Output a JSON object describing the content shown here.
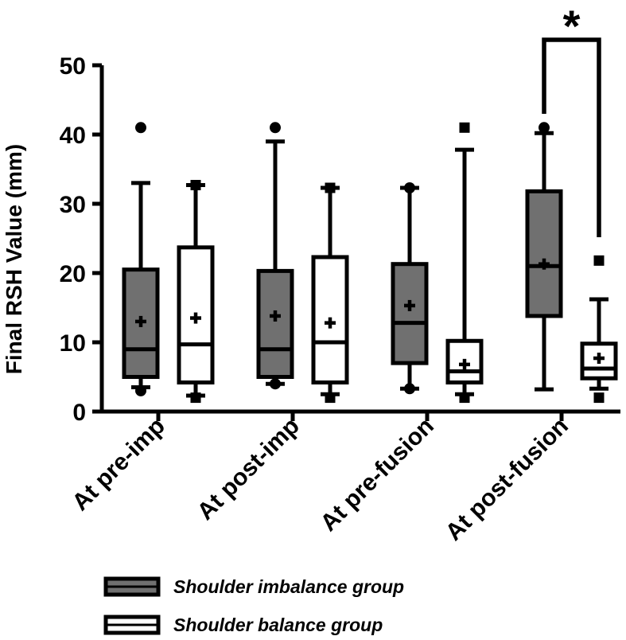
{
  "chart_data": {
    "type": "box",
    "ylabel": "Final RSH Value (mm)",
    "ylim": [
      0,
      50
    ],
    "yticks": [
      0,
      10,
      20,
      30,
      40,
      50
    ],
    "yticklabels": [
      "0",
      "10",
      "20",
      "30",
      "40",
      "50"
    ],
    "categories": [
      "At pre-imp",
      "At post-imp",
      "At pre-fusion",
      "At post-fusion"
    ],
    "series": [
      {
        "name": "Shoulder imbalance group",
        "fill": "#707070",
        "outlier_shape": "circle",
        "boxes": [
          {
            "min": 3.5,
            "q1": 5,
            "median": 9,
            "q3": 20.5,
            "max": 33,
            "mean": 13,
            "outliers": [
              3,
              41
            ]
          },
          {
            "min": 4,
            "q1": 5,
            "median": 9,
            "q3": 20.3,
            "max": 39,
            "mean": 13.8,
            "outliers": [
              4,
              41
            ]
          },
          {
            "min": 3.3,
            "q1": 7,
            "median": 12.8,
            "q3": 21.3,
            "max": 32.3,
            "mean": 15.3,
            "outliers": [
              3.3,
              32.3
            ]
          },
          {
            "min": 3.2,
            "q1": 13.8,
            "median": 21,
            "q3": 31.8,
            "max": 40.2,
            "mean": 21.3,
            "outliers": [
              41
            ]
          }
        ]
      },
      {
        "name": "Shoulder balance group",
        "fill": "#ffffff",
        "outlier_shape": "square",
        "boxes": [
          {
            "min": 2.3,
            "q1": 4.2,
            "median": 9.7,
            "q3": 23.7,
            "max": 32.7,
            "mean": 13.5,
            "outliers": [
              2,
              32.7
            ]
          },
          {
            "min": 2.5,
            "q1": 4.2,
            "median": 10,
            "q3": 22.3,
            "max": 32.3,
            "mean": 12.8,
            "outliers": [
              2,
              32.3
            ]
          },
          {
            "min": 2.5,
            "q1": 4.2,
            "median": 5.8,
            "q3": 10.2,
            "max": 37.8,
            "mean": 6.8,
            "outliers": [
              2,
              41
            ]
          },
          {
            "min": 3.3,
            "q1": 4.8,
            "median": 6.2,
            "q3": 9.8,
            "max": 16.2,
            "mean": 7.7,
            "outliers": [
              2,
              21.8
            ]
          }
        ]
      }
    ],
    "significance": {
      "category": "At post-fusion",
      "label": "*"
    },
    "legend_position": "bottom"
  }
}
